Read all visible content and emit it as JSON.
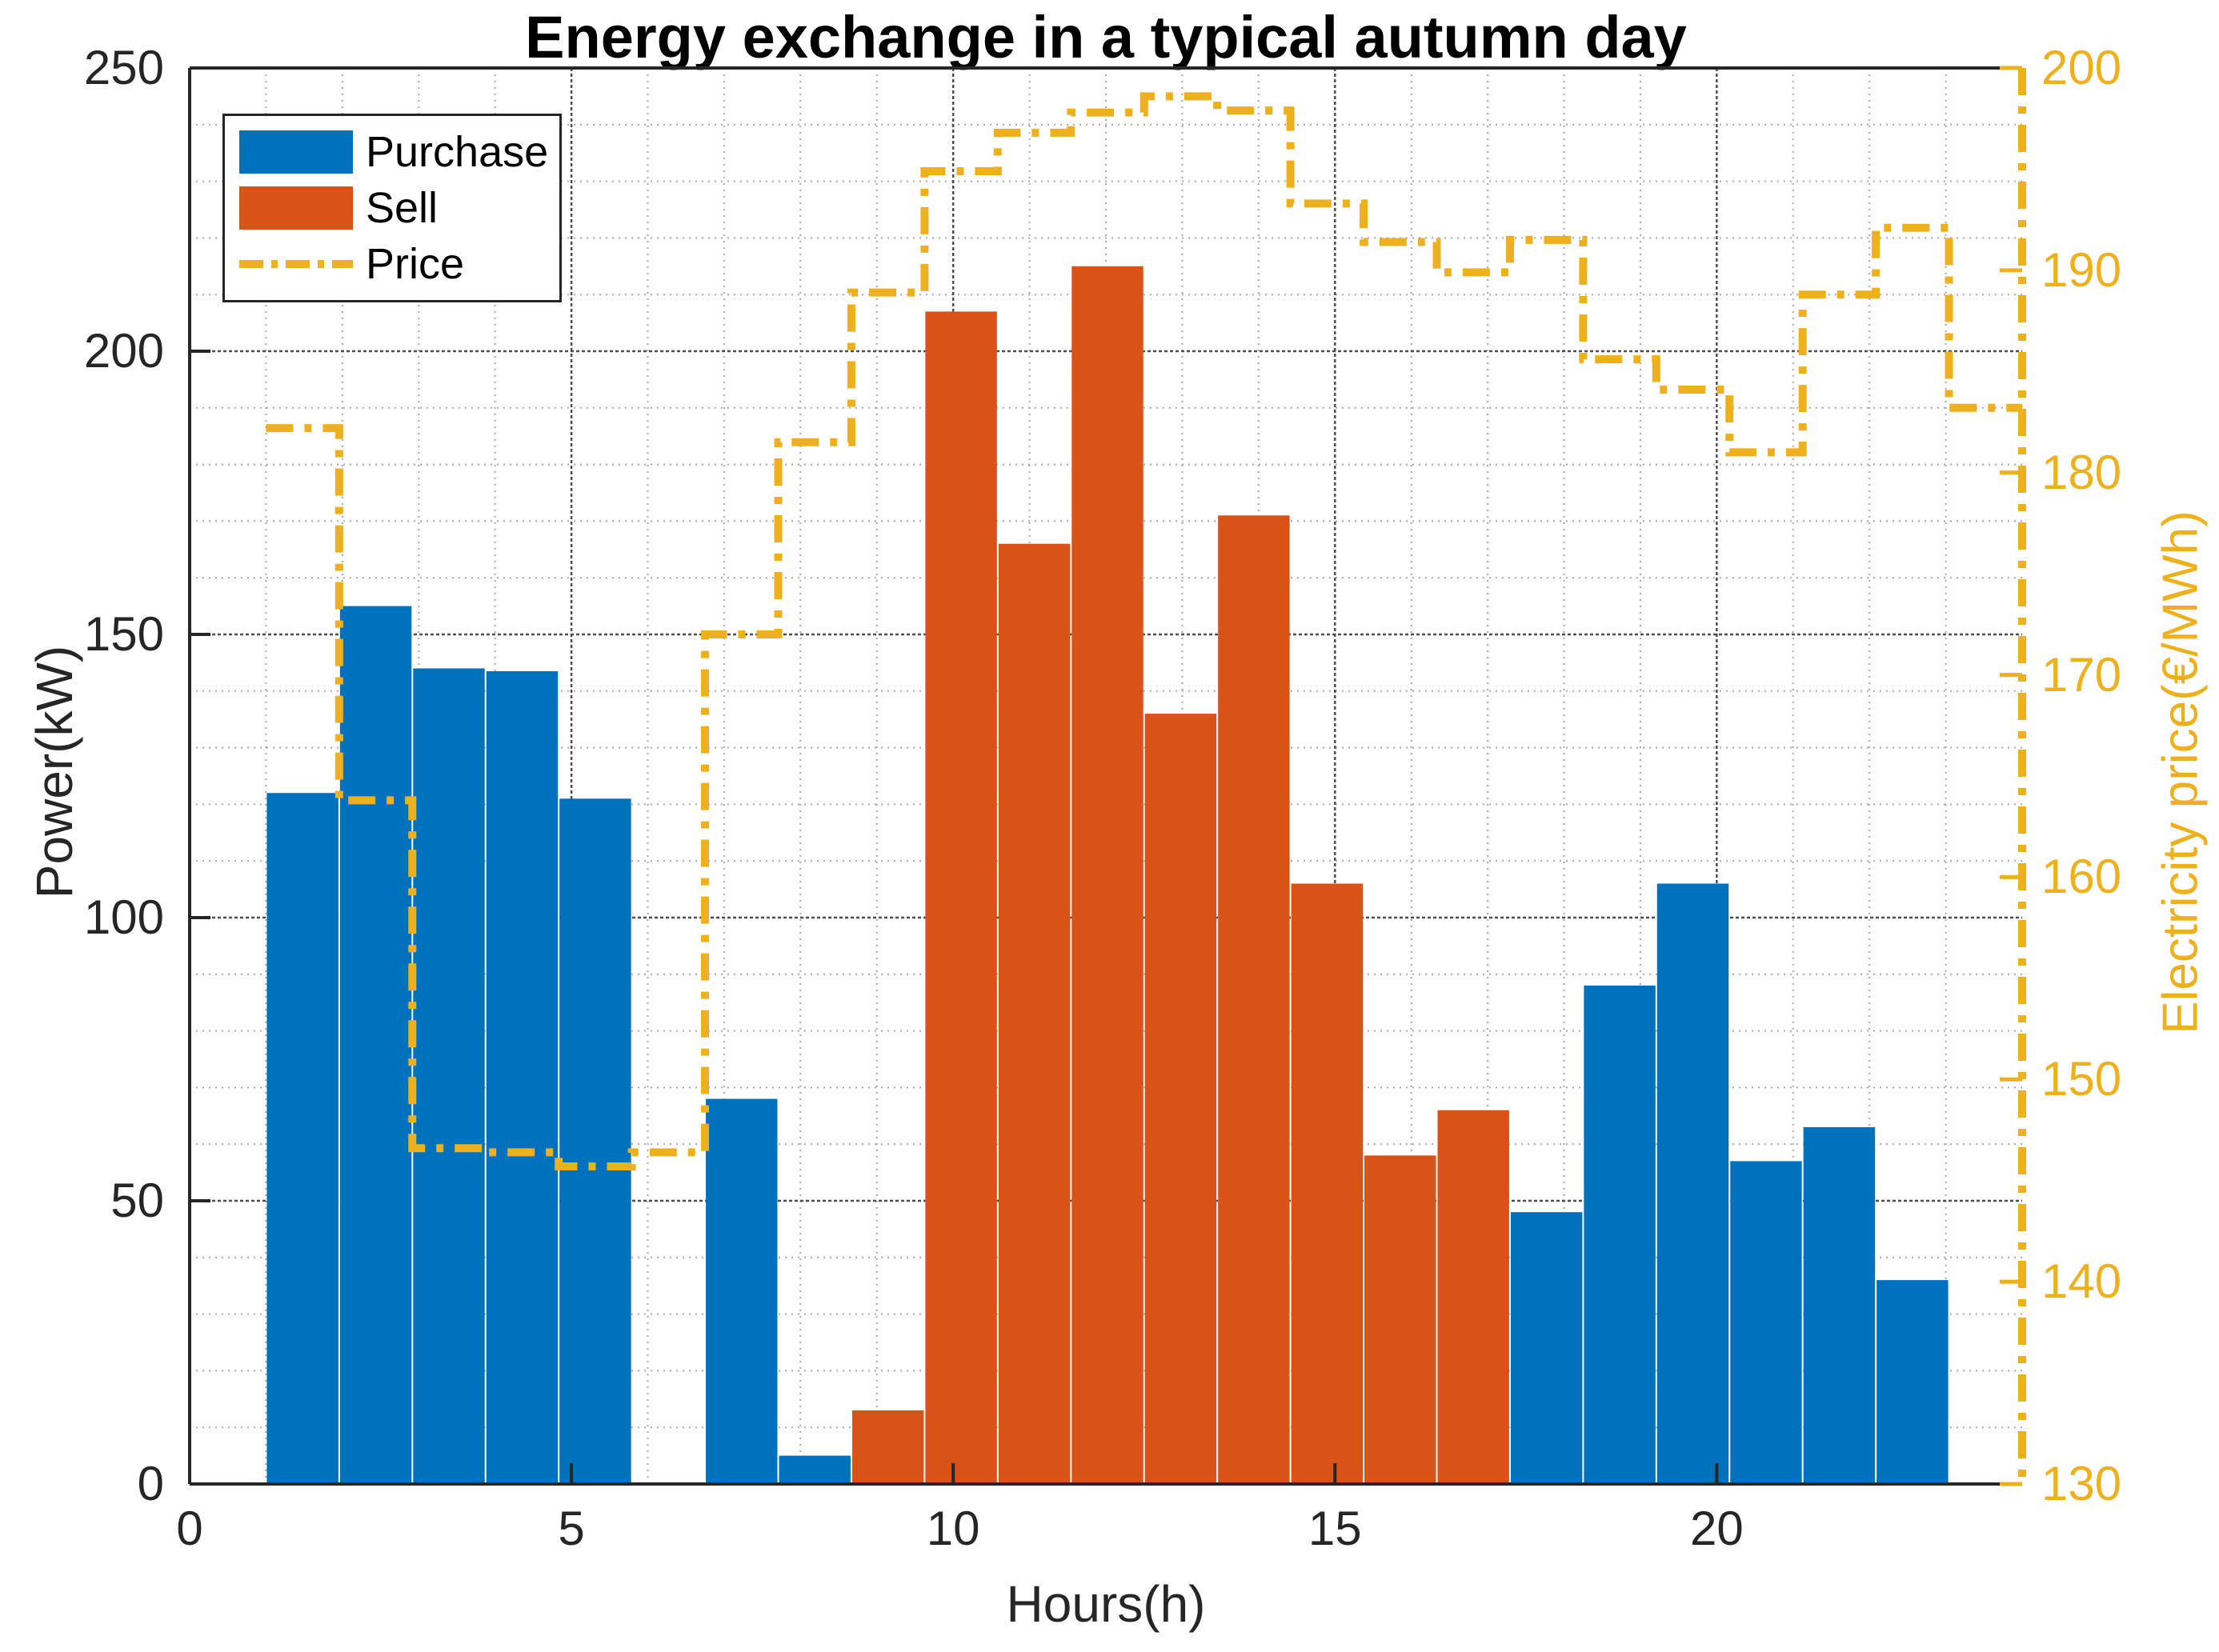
{
  "title": "Energy exchange in a typical autumn day",
  "chart_data": {
    "type": "bar+line",
    "title": "Energy exchange in a typical autumn day",
    "xlabel": "Hours(h)",
    "ylabel_left": "Power(kW)",
    "ylabel_right": "Electricity price(€/MWh)",
    "xlim": [
      0,
      24
    ],
    "ylim_left": [
      0,
      250
    ],
    "ylim_right": [
      130,
      200
    ],
    "xticks": [
      0,
      5,
      10,
      15,
      20
    ],
    "yticks_left": [
      0,
      50,
      100,
      150,
      200,
      250
    ],
    "yticks_right": [
      130,
      140,
      150,
      160,
      170,
      180,
      190,
      200
    ],
    "x_minor_step": 1,
    "y_minor_step_left": 10,
    "bar_domain": [
      1,
      24
    ],
    "hours": [
      1,
      2,
      3,
      4,
      5,
      6,
      7,
      8,
      9,
      10,
      11,
      12,
      13,
      14,
      15,
      16,
      17,
      18,
      19,
      20,
      21,
      22,
      23,
      24
    ],
    "series": [
      {
        "name": "Purchase",
        "type": "bar",
        "axis": "left",
        "color": "#0072BD",
        "values": [
          122,
          155,
          144,
          143.5,
          121,
          0,
          68,
          5,
          0,
          0,
          0,
          0,
          0,
          0,
          0,
          0,
          0,
          48,
          88,
          106,
          57,
          63,
          36,
          0
        ]
      },
      {
        "name": "Sell",
        "type": "bar",
        "axis": "left",
        "color": "#D95319",
        "values": [
          0,
          0,
          0,
          0,
          0,
          0,
          0,
          0,
          13,
          207,
          166,
          215,
          136,
          171,
          106,
          58,
          66,
          0,
          0,
          0,
          0,
          0,
          0,
          0
        ]
      },
      {
        "name": "Price",
        "type": "line",
        "axis": "right",
        "color": "#EDB120",
        "style": "dash-dot",
        "values": [
          182.2,
          163.8,
          146.6,
          146.4,
          145.7,
          146.4,
          172.0,
          181.5,
          188.9,
          194.9,
          196.8,
          197.8,
          198.6,
          197.9,
          193.3,
          191.4,
          189.9,
          191.5,
          185.6,
          184.1,
          181.0,
          188.8,
          192.1,
          183.2
        ]
      }
    ],
    "legend": {
      "items": [
        "Purchase",
        "Sell",
        "Price"
      ],
      "position": "upper-left"
    },
    "grid": {
      "major": true,
      "minor": true
    }
  },
  "colors": {
    "purchase": "#0072BD",
    "sell": "#D95319",
    "price": "#EDB120",
    "axis": "#262626",
    "grid_major": "#4d4d4d",
    "grid_minor": "#a8a8a8"
  }
}
